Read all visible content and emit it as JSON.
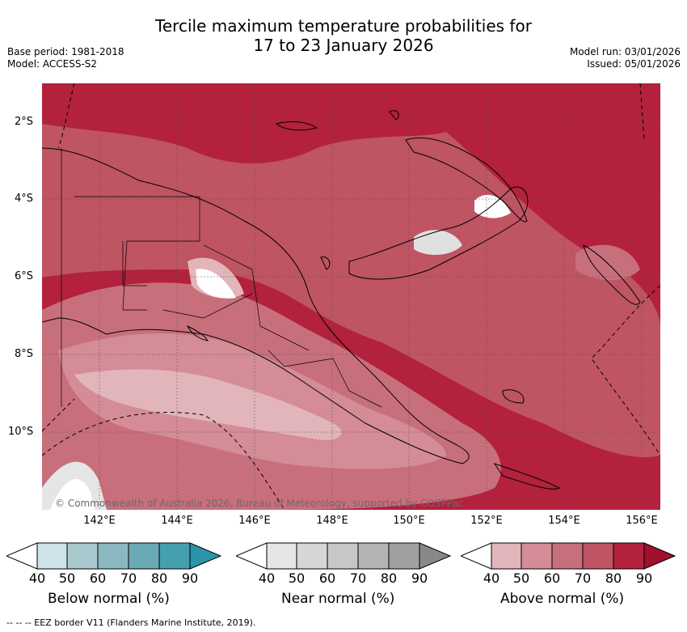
{
  "title_line1": "Tercile maximum temperature probabilities for",
  "title_line2": "17 to 23 January 2026",
  "base_period": "Base period: 1981-2018",
  "model": "Model: ACCESS-S2",
  "model_run": "Model run: 03/01/2026",
  "issued": "Issued: 05/01/2026",
  "lat_labels": [
    "2°S",
    "4°S",
    "6°S",
    "8°S",
    "10°S"
  ],
  "lon_labels": [
    "142°E",
    "144°E",
    "146°E",
    "148°E",
    "150°E",
    "152°E",
    "154°E",
    "156°E"
  ],
  "copyright": "© Commonwealth of Australia 2026, Bureau of Meteorology, supported by COSPPac",
  "colorbars": [
    {
      "label": "Below normal (%)",
      "ticks": [
        "40",
        "50",
        "60",
        "70",
        "80",
        "90"
      ],
      "colors": [
        "#cde3e8",
        "#a9c9ce",
        "#8ab8c1",
        "#6aa9b6",
        "#449faf",
        "#2a94a8"
      ]
    },
    {
      "label": "Near normal (%)",
      "ticks": [
        "40",
        "50",
        "60",
        "70",
        "80",
        "90"
      ],
      "colors": [
        "#e5e5e5",
        "#d6d6d6",
        "#c7c7c7",
        "#b4b4b4",
        "#a0a0a0",
        "#888888"
      ]
    },
    {
      "label": "Above normal (%)",
      "ticks": [
        "40",
        "50",
        "60",
        "70",
        "80",
        "90"
      ],
      "colors": [
        "#e2b5bb",
        "#d48c96",
        "#c86f7c",
        "#bf5463",
        "#b3213d",
        "#a1102e"
      ]
    }
  ],
  "footnote": "--  --  -- EEZ border V11 (Flanders Marine Institute, 2019)."
}
